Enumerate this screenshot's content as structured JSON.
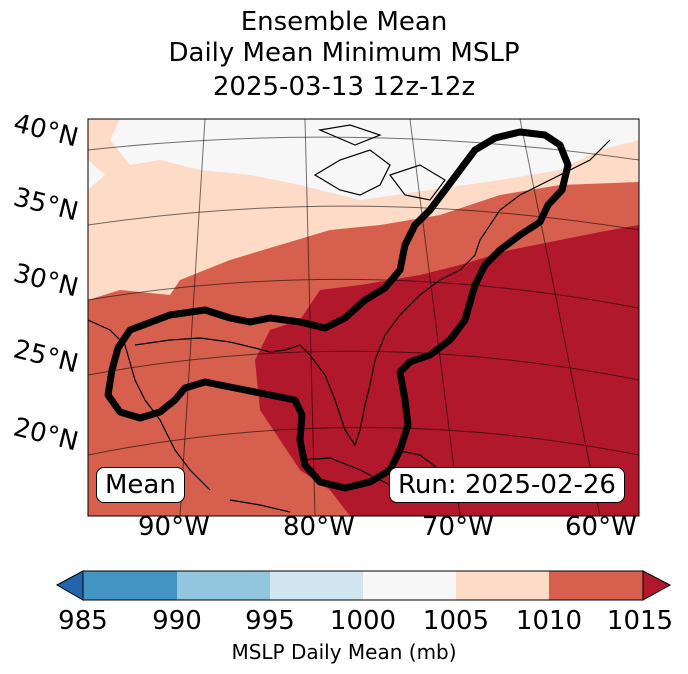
{
  "title": {
    "line1": "Ensemble Mean",
    "line2": "Daily Mean Minimum MSLP",
    "line3": "2025-03-13 12z-12z"
  },
  "latitude_labels": [
    "40°N",
    "35°N",
    "30°N",
    "25°N",
    "20°N"
  ],
  "longitude_labels": [
    "90°W",
    "80°W",
    "70°W",
    "60°W"
  ],
  "legend_box": "Mean",
  "run_box": "Run: 2025-02-26",
  "colorbar": {
    "ticks": [
      "985",
      "990",
      "995",
      "1000",
      "1005",
      "1010",
      "1015"
    ],
    "label": "MSLP Daily Mean (mb)",
    "colors": [
      "#2166ac",
      "#4393c3",
      "#92c5de",
      "#d1e5f0",
      "#f7f7f7",
      "#fddbc7",
      "#d6604d",
      "#b2182b"
    ]
  }
}
